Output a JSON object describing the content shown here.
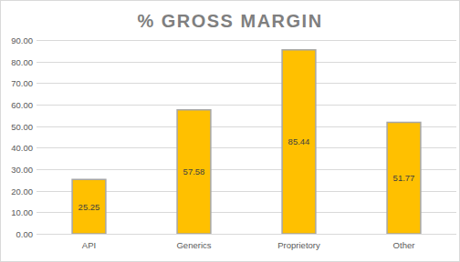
{
  "chart_data": {
    "type": "bar",
    "title": "% GROSS MARGIN",
    "categories": [
      "API",
      "Generics",
      "Proprietory",
      "Other"
    ],
    "values": [
      25.25,
      57.58,
      85.44,
      51.77
    ],
    "color": "#ffc000",
    "ylim": [
      0,
      90
    ],
    "yticks": [
      {
        "value": 0,
        "label": "0.00"
      },
      {
        "value": 10,
        "label": "10.00"
      },
      {
        "value": 20,
        "label": "20.00"
      },
      {
        "value": 30,
        "label": "30.00"
      },
      {
        "value": 40,
        "label": "40.00"
      },
      {
        "value": 50,
        "label": "50.00"
      },
      {
        "value": 60,
        "label": "60.00"
      },
      {
        "value": 70,
        "label": "70.00"
      },
      {
        "value": 80,
        "label": "80.00"
      },
      {
        "value": 90,
        "label": "90.00"
      }
    ],
    "grid": true,
    "data_labels": true
  }
}
